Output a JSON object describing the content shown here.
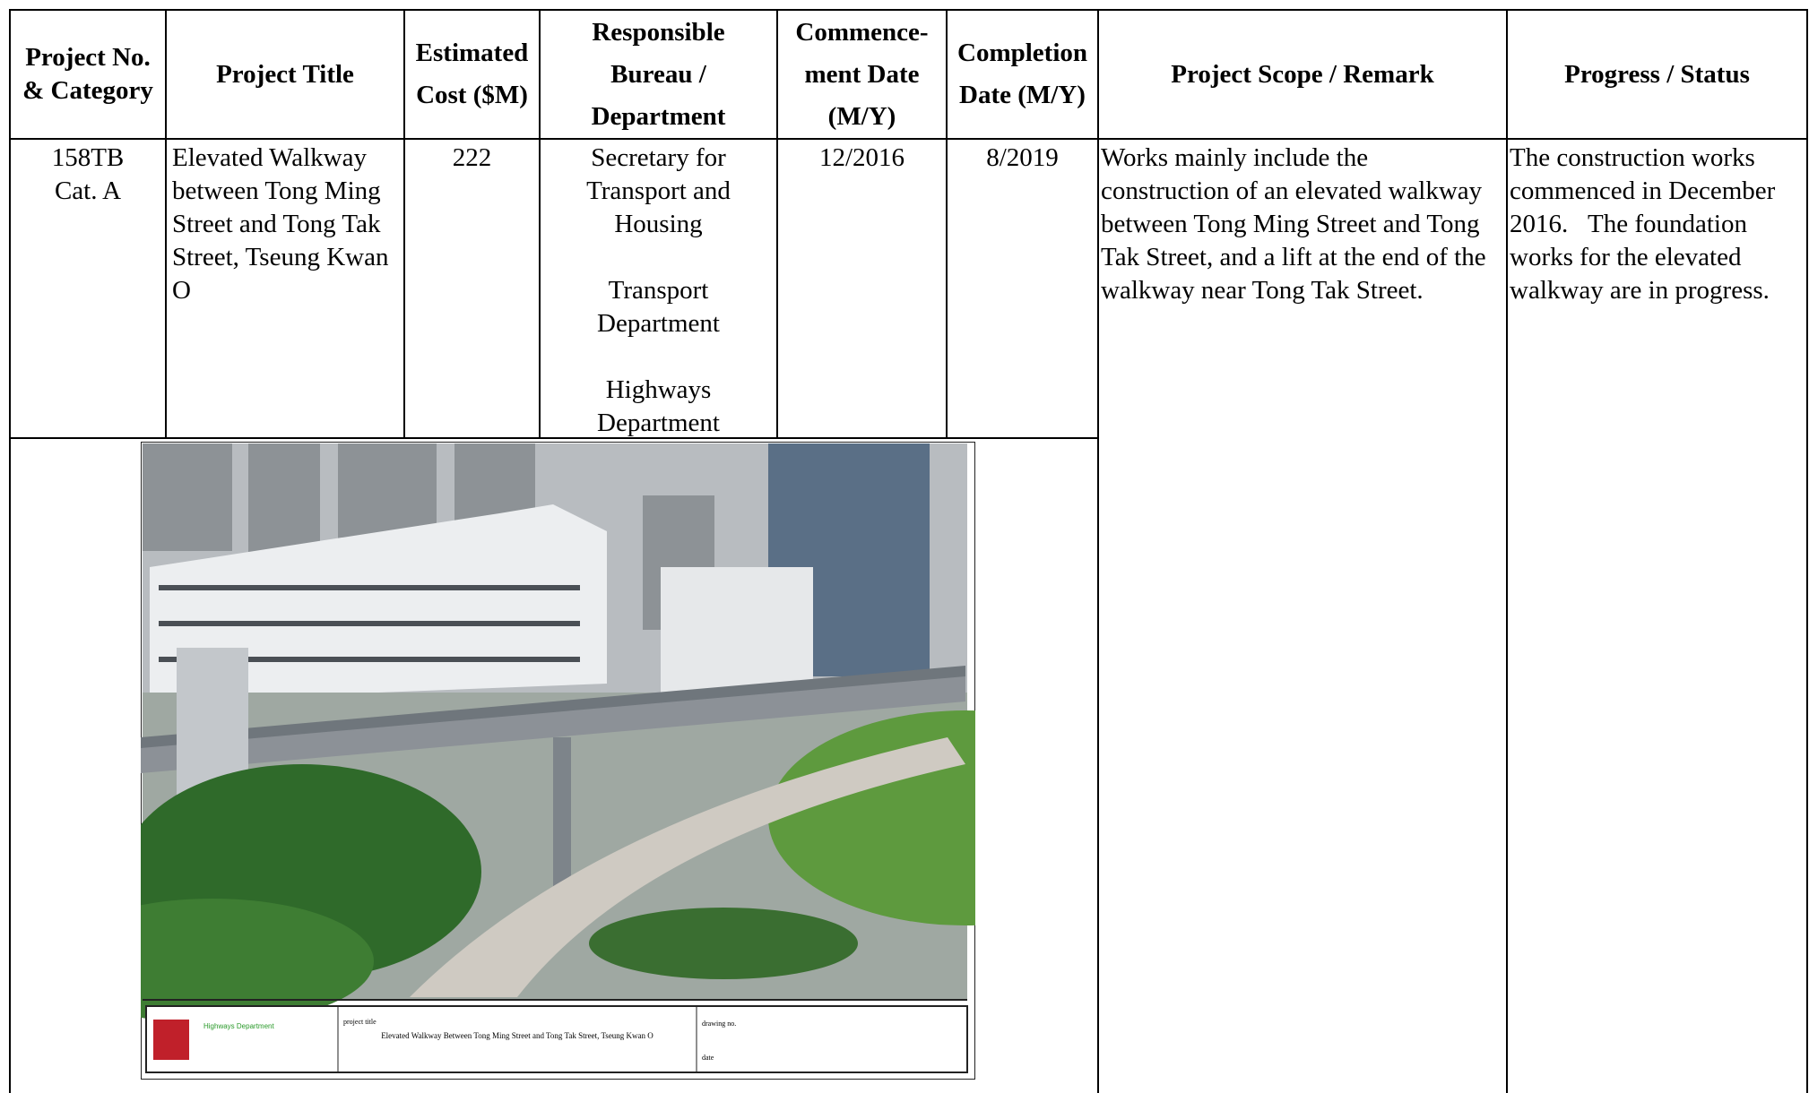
{
  "table": {
    "headers": [
      "Project No. & Category",
      "Project Title",
      "Estimated Cost ($M)",
      "Responsible Bureau / Department",
      "Commence-ment Date (M/Y)",
      "Completion Date (M/Y)",
      "Project Scope / Remark",
      "Progress / Status"
    ],
    "rows": [
      [
        [
          "158TB",
          "Cat. A"
        ],
        "Elevated Walkway between Tong Ming Street and Tong Tak Street, Tseung Kwan O",
        "222",
        [
          "Secretary for Transport and Housing",
          "Transport Department",
          "Highways Department"
        ],
        "12/2016",
        "8/2019",
        "Works mainly include the construction of an elevated walkway between Tong Ming Street and Tong Tak Street, and a lift at the end of the walkway near Tong Tak Street.",
        "The construction works commenced in December 2016.   The foundation works for the elevated walkway are in progress."
      ]
    ]
  },
  "drawing": {
    "title": "Elevated Walkway Between Tong Ming Street and Tong Tak Street, Tseung Kwan O",
    "department": "Highways Department",
    "project_title_label": "project title",
    "drawing_no_label": "drawing no.",
    "date_label": "date"
  }
}
